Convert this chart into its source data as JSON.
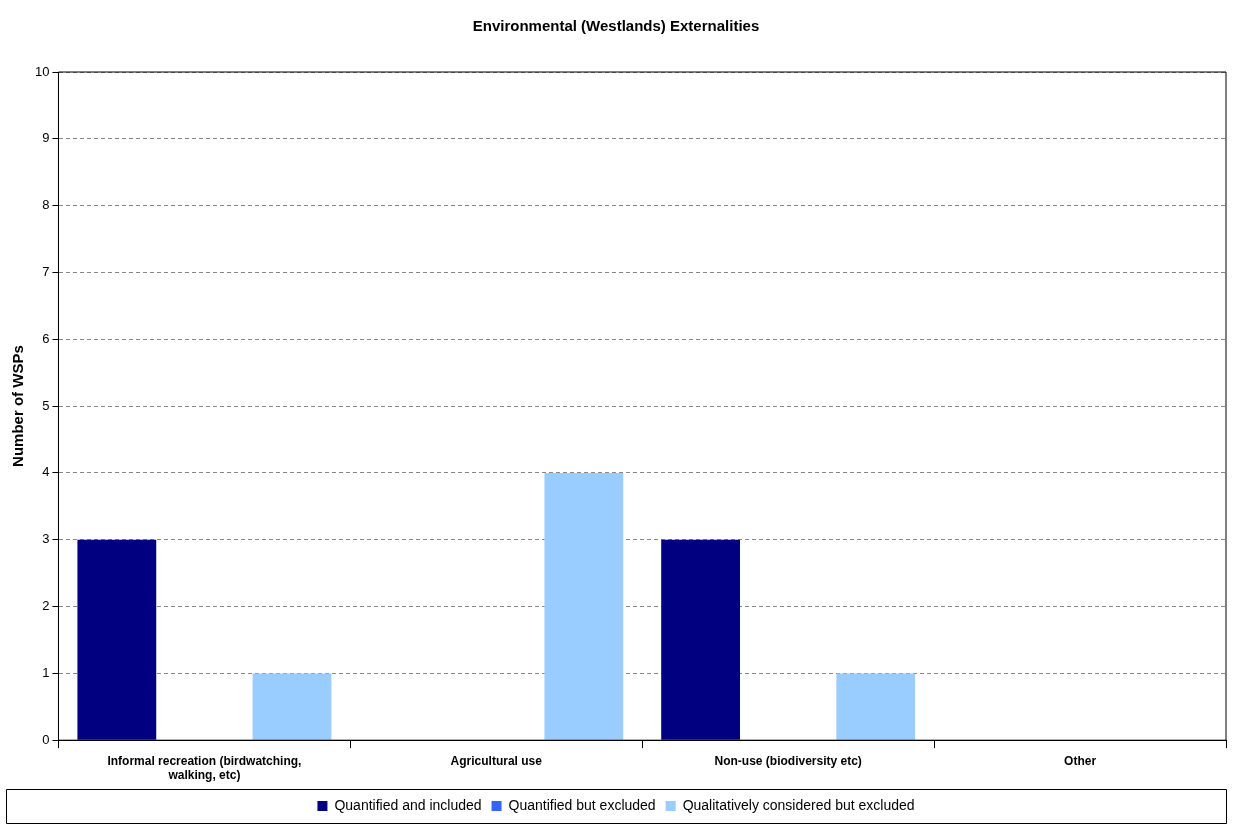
{
  "chart_data": {
    "type": "bar",
    "title": "Environmental (Westlands) Externalities",
    "ylabel": "Number of WSPs",
    "categories": [
      "Informal recreation (birdwatching, walking, etc)",
      "Agricultural use",
      "Non-use (biodiversity etc)",
      "Other"
    ],
    "series": [
      {
        "name": "Quantified and included",
        "color": "#000080",
        "values": [
          3,
          0,
          3,
          0
        ]
      },
      {
        "name": "Quantified but excluded",
        "color": "#3366ff",
        "values": [
          0,
          0,
          0,
          0
        ]
      },
      {
        "name": "Qualitatively considered but excluded",
        "color": "#99ccff",
        "values": [
          1,
          4,
          1,
          0
        ]
      }
    ],
    "ylim": [
      0,
      10
    ],
    "yticks": [
      0,
      1,
      2,
      3,
      4,
      5,
      6,
      7,
      8,
      9,
      10
    ],
    "grid": "y",
    "legend": "bottom"
  }
}
